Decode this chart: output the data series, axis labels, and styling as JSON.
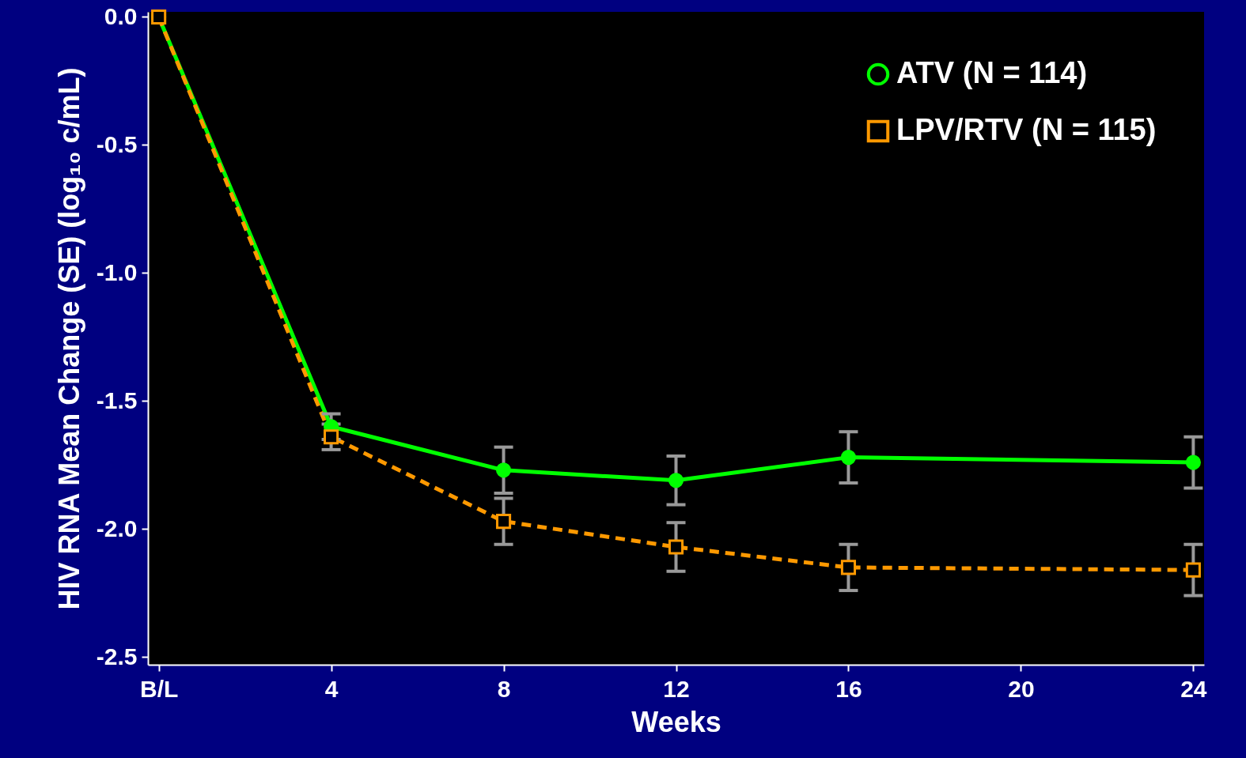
{
  "chart_data": {
    "type": "line",
    "xlabel": "Weeks",
    "ylabel": "HIV RNA Mean Change (SE) (log₁₀ c/mL)",
    "x": [
      0,
      4,
      8,
      12,
      16,
      24
    ],
    "xlim": [
      -0.25,
      24.25
    ],
    "xticks": [
      {
        "value": 0,
        "label": "B/L"
      },
      4,
      8,
      12,
      16,
      20,
      24
    ],
    "ylim": [
      -2.53,
      0.02
    ],
    "yticks": [
      {
        "value": 0,
        "label": "0.0"
      },
      -0.5,
      {
        "value": -1,
        "label": "-1.0"
      },
      -1.5,
      {
        "value": -2,
        "label": "-2.0"
      },
      -2.5
    ],
    "grid": false,
    "legend": "top right",
    "series": [
      {
        "name": "ATV (N = 114)",
        "color": "#00ff00",
        "marker": "circle",
        "line_style": "solid",
        "values": [
          0,
          -1.6,
          -1.77,
          -1.81,
          -1.72,
          -1.74
        ],
        "errors": [
          null,
          0.05,
          0.09,
          0.095,
          0.1,
          0.1
        ]
      },
      {
        "name": "LPV/RTV (N = 115)",
        "color": "#ff9900",
        "marker": "square",
        "line_style": "dashed",
        "values": [
          0,
          -1.64,
          -1.97,
          -2.07,
          -2.15,
          -2.16
        ],
        "errors": [
          null,
          0.05,
          0.09,
          0.095,
          0.09,
          0.1
        ]
      }
    ]
  }
}
